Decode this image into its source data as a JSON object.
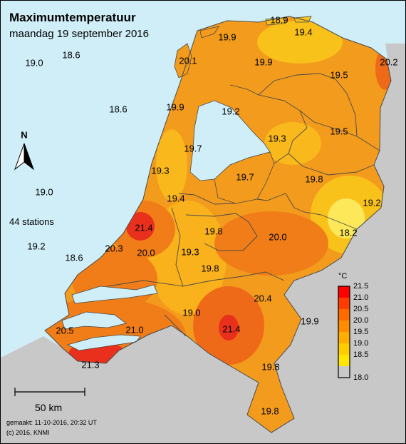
{
  "title": "Maximumtemperatuur",
  "subtitle": "maandag 19 september 2016",
  "station_count_text": "44 stations",
  "scale_bar_label": "50 km",
  "made_text": "gemaakt: 11-10-2016, 20:32 UT",
  "copyright_text": "(c) 2016, KNMI",
  "north_label": "N",
  "legend": {
    "unit": "°C",
    "ticks": [
      "21.5",
      "21.0",
      "20.5",
      "20.0",
      "19.5",
      "19.0",
      "18.5",
      "18.0"
    ],
    "colors": [
      "#ff0000",
      "#ff3b00",
      "#ff6a00",
      "#ff8c00",
      "#ffad00",
      "#ffcc00",
      "#ffe600",
      "#ffff33"
    ]
  },
  "colors": {
    "sea": "#cfeef7",
    "land_outside": "#c8c8c8",
    "base_land": "#f39b1c",
    "warm": "#f07d17",
    "hot": "#e8301d",
    "cool": "#f9c21b",
    "cold": "#fde85a"
  },
  "temperatures": [
    {
      "id": "t1",
      "value": "18.9"
    },
    {
      "id": "t2",
      "value": "19.9"
    },
    {
      "id": "t3",
      "value": "19.4"
    },
    {
      "id": "t4",
      "value": "19.0"
    },
    {
      "id": "t5",
      "value": "18.6"
    },
    {
      "id": "t6",
      "value": "20.1"
    },
    {
      "id": "t7",
      "value": "19.9"
    },
    {
      "id": "t8",
      "value": "20.2"
    },
    {
      "id": "t9",
      "value": "19.5"
    },
    {
      "id": "t10",
      "value": "18.6"
    },
    {
      "id": "t11",
      "value": "19.9"
    },
    {
      "id": "t12",
      "value": "19.2"
    },
    {
      "id": "t13",
      "value": "19.3"
    },
    {
      "id": "t14",
      "value": "19.5"
    },
    {
      "id": "t15",
      "value": "19.7"
    },
    {
      "id": "t16",
      "value": "19.3"
    },
    {
      "id": "t17",
      "value": "19.7"
    },
    {
      "id": "t18",
      "value": "19.8"
    },
    {
      "id": "t19",
      "value": "19.0"
    },
    {
      "id": "t20",
      "value": "19.4"
    },
    {
      "id": "t21",
      "value": "19.2"
    },
    {
      "id": "t22",
      "value": "21.4"
    },
    {
      "id": "t23",
      "value": "19.8"
    },
    {
      "id": "t24",
      "value": "20.0"
    },
    {
      "id": "t25",
      "value": "18.2"
    },
    {
      "id": "t26",
      "value": "19.2"
    },
    {
      "id": "t27",
      "value": "20.3"
    },
    {
      "id": "t28",
      "value": "20.0"
    },
    {
      "id": "t29",
      "value": "19.3"
    },
    {
      "id": "t30",
      "value": "18.6"
    },
    {
      "id": "t31",
      "value": "19.8"
    },
    {
      "id": "t32",
      "value": "20.4"
    },
    {
      "id": "t33",
      "value": "19.0"
    },
    {
      "id": "t34",
      "value": "21.4"
    },
    {
      "id": "t35",
      "value": "19.9"
    },
    {
      "id": "t36",
      "value": "20.5"
    },
    {
      "id": "t37",
      "value": "21.0"
    },
    {
      "id": "t38",
      "value": "21.3"
    },
    {
      "id": "t39",
      "value": "19.8"
    },
    {
      "id": "t40",
      "value": "19.8"
    }
  ]
}
